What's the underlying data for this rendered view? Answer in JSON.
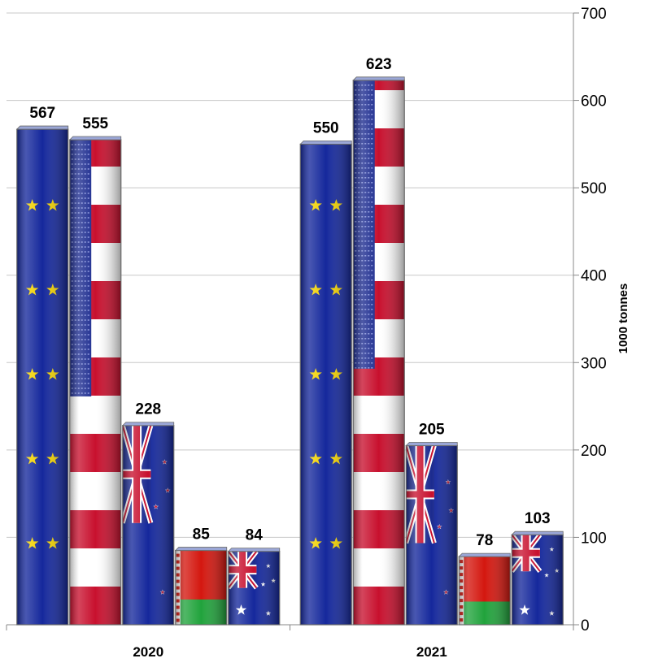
{
  "chart_data": {
    "type": "bar",
    "categories": [
      "2020",
      "2021"
    ],
    "series": [
      {
        "flag": "eu-flag",
        "values": [
          567,
          550
        ],
        "colors": {
          "base": "#15289c",
          "star": "#f2d200"
        }
      },
      {
        "flag": "usa-flag",
        "values": [
          555,
          623
        ],
        "colors": {
          "stripe": "#c8102e",
          "white": "#ffffff",
          "canton": "#1c2b8f"
        }
      },
      {
        "flag": "new-zealand-flag",
        "values": [
          228,
          205
        ],
        "colors": {
          "base": "#15289c",
          "cross": "#c8102e",
          "star": "#c8102e"
        }
      },
      {
        "flag": "belarus-flag",
        "values": [
          85,
          78
        ],
        "colors": {
          "red": "#d4170f",
          "green": "#21a33c"
        }
      },
      {
        "flag": "australia-flag",
        "values": [
          84,
          103
        ],
        "colors": {
          "base": "#15289c",
          "cross": "#c8102e",
          "star": "#ffffff"
        }
      }
    ],
    "y_axis": {
      "label": "1000 tonnes",
      "min": 0,
      "max": 700,
      "ticks": [
        0,
        100,
        200,
        300,
        400,
        500,
        600,
        700
      ],
      "position": "right"
    },
    "grid": true,
    "legend": "none"
  }
}
